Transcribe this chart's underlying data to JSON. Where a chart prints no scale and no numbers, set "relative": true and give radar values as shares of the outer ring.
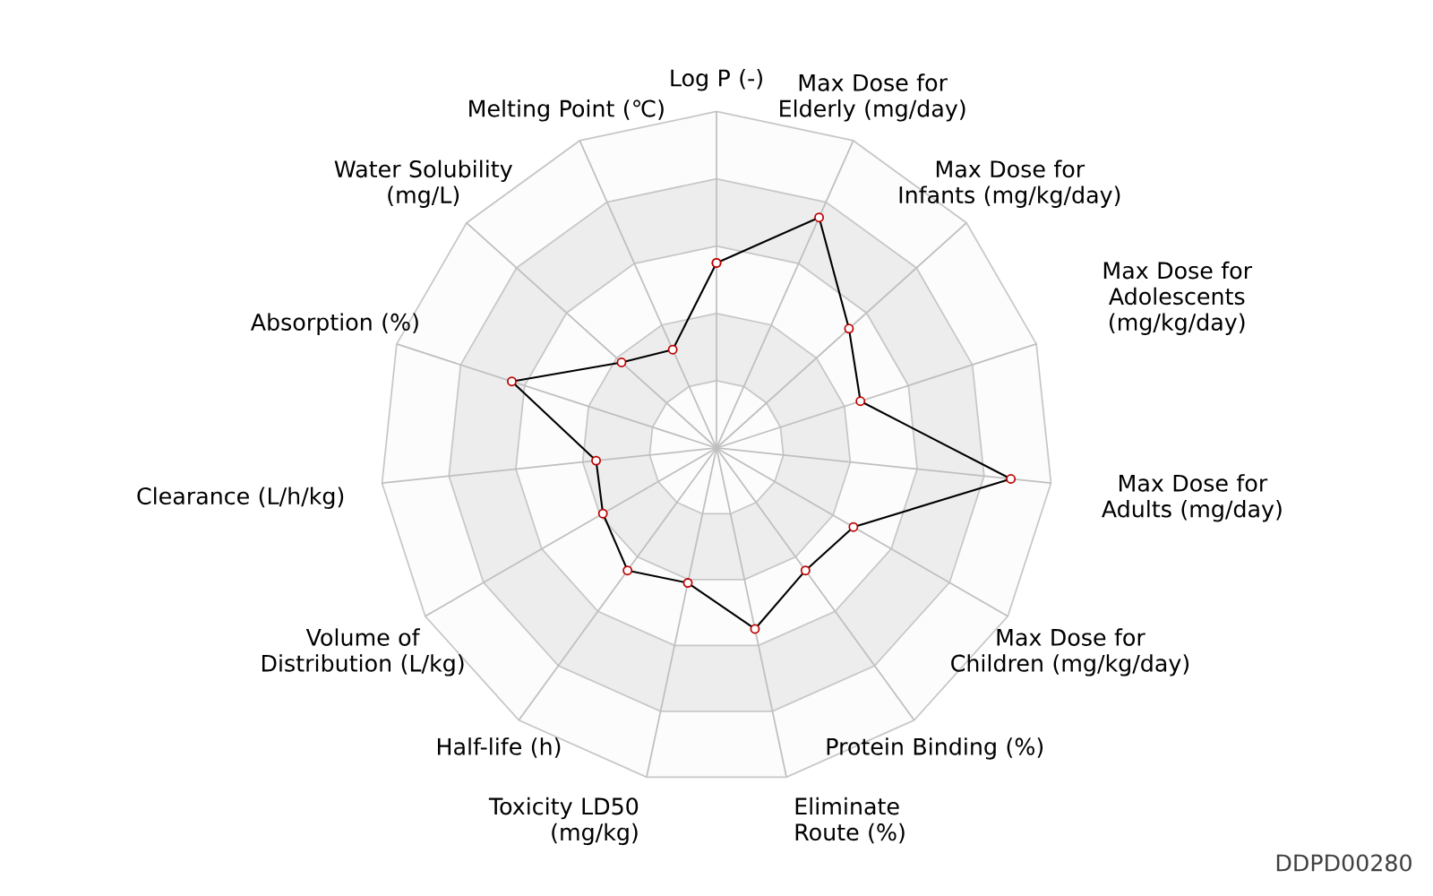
{
  "chart_data": {
    "type": "radar",
    "relative": true,
    "categories": [
      "Log P (-)",
      "Max Dose for Elderly (mg/day)",
      "Max Dose for Infants (mg/kg/day)",
      "Max Dose for Adolescents (mg/kg/day)",
      "Max Dose for Adults (mg/day)",
      "Max Dose for Children (mg/kg/day)",
      "Protein Binding (%)",
      "Eliminate Route (%)",
      "Toxicity LD50 (mg/kg)",
      "Half-life (h)",
      "Volume of Distribution (L/kg)",
      "Clearance (L/h/kg)",
      "Absorption (%)",
      "Water Solubility (mg/L)",
      "Melting Point (℃)"
    ],
    "series": [
      {
        "color": "#000000",
        "values": [
          0.55,
          0.75,
          0.53,
          0.45,
          0.88,
          0.47,
          0.45,
          0.55,
          0.41,
          0.45,
          0.39,
          0.36,
          0.64,
          0.38,
          0.32
        ]
      }
    ],
    "marker": "circle",
    "annotations": [
      "DDPD00280"
    ]
  }
}
